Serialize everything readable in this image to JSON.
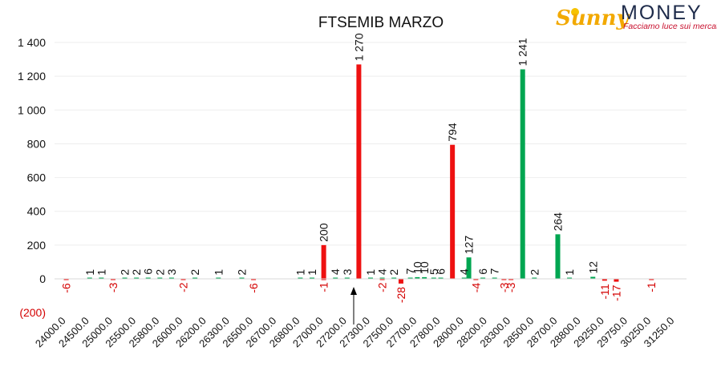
{
  "logo": {
    "brand_left": "Sunny",
    "brand_right": "MONEY",
    "tagline": "Facciamo luce sui mercati"
  },
  "chart_data": {
    "type": "bar",
    "title": "FTSEMIB MARZO",
    "xlabel": "",
    "ylabel": "",
    "ylim": [
      -200,
      1400
    ],
    "yticks": [
      -200,
      0,
      200,
      400,
      600,
      800,
      1000,
      1200,
      1400
    ],
    "ytick_labels": [
      "(200)",
      "0",
      "200",
      "400",
      "600",
      "800",
      "1 000",
      "1 200",
      "1 400"
    ],
    "grid": true,
    "legend": "none",
    "colors": {
      "red_series": "#ee1111",
      "green_series": "#00a651",
      "negative_label": "#d40000"
    },
    "current_price_marker": {
      "symbol": "arrow-up",
      "near_category": "27300.0"
    },
    "categories": [
      "24000.0",
      "24500.0",
      "25000.0",
      "25500.0",
      "25800.0",
      "26000.0",
      "26200.0",
      "26300.0",
      "26500.0",
      "26700.0",
      "26800.0",
      "27000.0",
      "27200.0",
      "27300.0",
      "27500.0",
      "27700.0",
      "27800.0",
      "28000.0",
      "28200.0",
      "28300.0",
      "28500.0",
      "28700.0",
      "28800.0",
      "29250.0",
      "29750.0",
      "30250.0",
      "31250.0"
    ],
    "bars": [
      {
        "x": 0.5,
        "value": -6,
        "color": "red",
        "label": "-6"
      },
      {
        "x": 1.5,
        "value": 1,
        "color": "green",
        "label": "1"
      },
      {
        "x": 2.0,
        "value": 1,
        "color": "green",
        "label": "1"
      },
      {
        "x": 2.5,
        "value": -3,
        "color": "red",
        "label": "-3"
      },
      {
        "x": 3.0,
        "value": 2,
        "color": "green",
        "label": "2"
      },
      {
        "x": 3.5,
        "value": 2,
        "color": "green",
        "label": "2"
      },
      {
        "x": 4.0,
        "value": 6,
        "color": "green",
        "label": "6"
      },
      {
        "x": 4.5,
        "value": 2,
        "color": "green",
        "label": "2"
      },
      {
        "x": 5.0,
        "value": 3,
        "color": "green",
        "label": "3"
      },
      {
        "x": 5.5,
        "value": -2,
        "color": "red",
        "label": "-2"
      },
      {
        "x": 6.0,
        "value": 2,
        "color": "green",
        "label": "2"
      },
      {
        "x": 7.0,
        "value": 1,
        "color": "green",
        "label": "1"
      },
      {
        "x": 8.0,
        "value": 2,
        "color": "green",
        "label": "2"
      },
      {
        "x": 8.5,
        "value": -6,
        "color": "red",
        "label": "-6"
      },
      {
        "x": 10.5,
        "value": 1,
        "color": "green",
        "label": "1"
      },
      {
        "x": 11.0,
        "value": 1,
        "color": "green",
        "label": "1"
      },
      {
        "x": 11.5,
        "value": -1,
        "color": "red",
        "label": "-1"
      },
      {
        "x": 11.5,
        "value": 200,
        "color": "red",
        "label": "200"
      },
      {
        "x": 12.0,
        "value": 4,
        "color": "green",
        "label": "4"
      },
      {
        "x": 12.5,
        "value": 3,
        "color": "green",
        "label": "3"
      },
      {
        "x": 13.0,
        "value": 1270,
        "color": "red",
        "label": "1 270"
      },
      {
        "x": 13.5,
        "value": 1,
        "color": "green",
        "label": "1"
      },
      {
        "x": 14.0,
        "value": -2,
        "color": "red",
        "label": "-2"
      },
      {
        "x": 14.0,
        "value": 4,
        "color": "green",
        "label": "4"
      },
      {
        "x": 14.5,
        "value": 2,
        "color": "green",
        "label": "2"
      },
      {
        "x": 14.8,
        "value": -28,
        "color": "red",
        "label": "-28"
      },
      {
        "x": 15.2,
        "value": 7,
        "color": "green",
        "label": "7"
      },
      {
        "x": 15.5,
        "value": 10,
        "color": "green",
        "label": "10"
      },
      {
        "x": 15.8,
        "value": 10,
        "color": "green",
        "label": "10"
      },
      {
        "x": 16.2,
        "value": 5,
        "color": "green",
        "label": "5"
      },
      {
        "x": 16.5,
        "value": 6,
        "color": "green",
        "label": "6"
      },
      {
        "x": 17.0,
        "value": 794,
        "color": "red",
        "label": "794"
      },
      {
        "x": 17.5,
        "value": 4,
        "color": "green",
        "label": "4"
      },
      {
        "x": 17.7,
        "value": 127,
        "color": "green",
        "label": "127"
      },
      {
        "x": 18.0,
        "value": -4,
        "color": "red",
        "label": "-4"
      },
      {
        "x": 18.3,
        "value": 6,
        "color": "green",
        "label": "6"
      },
      {
        "x": 18.8,
        "value": 7,
        "color": "green",
        "label": "7"
      },
      {
        "x": 19.2,
        "value": -3,
        "color": "red",
        "label": "-3"
      },
      {
        "x": 19.5,
        "value": -3,
        "color": "red",
        "label": "-3"
      },
      {
        "x": 20.0,
        "value": 1241,
        "color": "green",
        "label": "1 241"
      },
      {
        "x": 20.5,
        "value": 2,
        "color": "green",
        "label": "2"
      },
      {
        "x": 21.5,
        "value": 264,
        "color": "green",
        "label": "264"
      },
      {
        "x": 22.0,
        "value": 1,
        "color": "green",
        "label": "1"
      },
      {
        "x": 23.0,
        "value": 12,
        "color": "green",
        "label": "12"
      },
      {
        "x": 23.5,
        "value": -11,
        "color": "red",
        "label": "-11"
      },
      {
        "x": 24.0,
        "value": -17,
        "color": "red",
        "label": "-17"
      },
      {
        "x": 25.5,
        "value": -1,
        "color": "red",
        "label": "-1"
      }
    ]
  }
}
